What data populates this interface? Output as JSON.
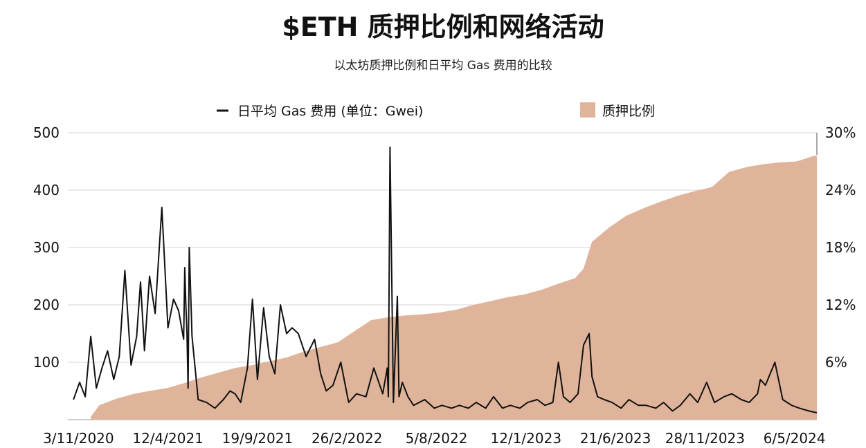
{
  "chart_data": {
    "type": "line+area",
    "title": "$ETH 质押比例和网络活动",
    "subtitle": "以太坊质押比例和日平均 Gas 费用的比较",
    "legend": {
      "placement": "top",
      "gas_label": "日平均 Gas 费用 (单位：Gwei)",
      "staking_label": "质押比例"
    },
    "colors": {
      "gas_line": "#111111",
      "staking_area": "#dfb49a",
      "grid": "#d6d6d6"
    },
    "grid": true,
    "x_tick_labels": [
      "3/11/2020",
      "12/4/2021",
      "19/9/2021",
      "26/2/2022",
      "5/8/2022",
      "12/1/2023",
      "21/6/2023",
      "28/11/2023",
      "6/5/2024"
    ],
    "x_tick_dates": [
      "2020-11-03",
      "2021-04-12",
      "2021-09-19",
      "2022-02-26",
      "2022-08-05",
      "2023-01-12",
      "2023-06-21",
      "2023-11-28",
      "2024-05-06"
    ],
    "x_range": [
      "2020-10-15",
      "2024-06-15"
    ],
    "y_left": {
      "label": "",
      "ylim": [
        0,
        500
      ],
      "tick_values": [
        100,
        200,
        300,
        400,
        500
      ],
      "tick_labels": [
        "100",
        "200",
        "300",
        "400",
        "500"
      ]
    },
    "y_right": {
      "label": "",
      "ylim": [
        0,
        30
      ],
      "tick_values": [
        6,
        12,
        18,
        24,
        30
      ],
      "tick_labels": [
        "6%",
        "12%",
        "18%",
        "24%",
        "30%"
      ]
    },
    "series": [
      {
        "name": "质押比例",
        "type": "area",
        "axis": "right",
        "unit": "%",
        "x": [
          "2020-11-25",
          "2020-12-10",
          "2021-01-10",
          "2021-02-10",
          "2021-03-10",
          "2021-04-10",
          "2021-05-10",
          "2021-06-10",
          "2021-07-10",
          "2021-08-10",
          "2021-09-10",
          "2021-10-10",
          "2021-11-10",
          "2021-12-10",
          "2022-01-10",
          "2022-02-10",
          "2022-03-10",
          "2022-04-10",
          "2022-05-10",
          "2022-06-10",
          "2022-07-10",
          "2022-08-10",
          "2022-09-10",
          "2022-10-10",
          "2022-11-10",
          "2022-12-10",
          "2023-01-10",
          "2023-02-10",
          "2023-03-10",
          "2023-04-10",
          "2023-04-25",
          "2023-05-10",
          "2023-06-10",
          "2023-07-10",
          "2023-08-10",
          "2023-09-10",
          "2023-10-10",
          "2023-11-10",
          "2023-12-10",
          "2024-01-10",
          "2024-02-10",
          "2024-03-10",
          "2024-04-10",
          "2024-05-10",
          "2024-06-10"
        ],
        "values": [
          0.3,
          1.5,
          2.2,
          2.7,
          3.0,
          3.3,
          3.8,
          4.4,
          4.9,
          5.4,
          5.7,
          6.1,
          6.5,
          7.1,
          7.6,
          8.1,
          9.2,
          10.4,
          10.7,
          10.9,
          11.0,
          11.2,
          11.5,
          12.0,
          12.4,
          12.8,
          13.1,
          13.6,
          14.2,
          14.8,
          15.8,
          18.6,
          20.1,
          21.3,
          22.1,
          22.8,
          23.4,
          23.9,
          24.3,
          25.9,
          26.4,
          26.7,
          26.9,
          27.0,
          27.6
        ]
      },
      {
        "name": "日平均 Gas 费用 (单位：Gwei)",
        "type": "line",
        "axis": "left",
        "unit": "Gwei",
        "x": [
          "2020-10-25",
          "2020-11-05",
          "2020-11-15",
          "2020-11-25",
          "2020-12-05",
          "2020-12-15",
          "2020-12-25",
          "2021-01-05",
          "2021-01-15",
          "2021-01-25",
          "2021-02-05",
          "2021-02-15",
          "2021-02-22",
          "2021-03-01",
          "2021-03-10",
          "2021-03-20",
          "2021-04-01",
          "2021-04-12",
          "2021-04-22",
          "2021-05-01",
          "2021-05-10",
          "2021-05-12",
          "2021-05-14",
          "2021-05-16",
          "2021-05-18",
          "2021-05-20",
          "2021-05-25",
          "2021-06-05",
          "2021-06-20",
          "2021-07-05",
          "2021-07-20",
          "2021-08-01",
          "2021-08-10",
          "2021-08-20",
          "2021-09-01",
          "2021-09-10",
          "2021-09-19",
          "2021-09-30",
          "2021-10-10",
          "2021-10-20",
          "2021-10-30",
          "2021-11-10",
          "2021-11-20",
          "2021-12-01",
          "2021-12-15",
          "2021-12-30",
          "2022-01-10",
          "2022-01-20",
          "2022-02-01",
          "2022-02-15",
          "2022-03-01",
          "2022-03-15",
          "2022-04-01",
          "2022-04-15",
          "2022-05-01",
          "2022-05-09",
          "2022-05-11",
          "2022-05-14",
          "2022-05-20",
          "2022-05-27",
          "2022-05-30",
          "2022-06-05",
          "2022-06-15",
          "2022-06-25",
          "2022-07-05",
          "2022-07-15",
          "2022-08-01",
          "2022-08-15",
          "2022-09-01",
          "2022-09-15",
          "2022-10-01",
          "2022-10-15",
          "2022-11-01",
          "2022-11-15",
          "2022-12-01",
          "2022-12-15",
          "2023-01-01",
          "2023-01-15",
          "2023-02-01",
          "2023-02-15",
          "2023-03-01",
          "2023-03-11",
          "2023-03-20",
          "2023-04-01",
          "2023-04-15",
          "2023-04-25",
          "2023-05-05",
          "2023-05-10",
          "2023-05-20",
          "2023-06-01",
          "2023-06-15",
          "2023-07-01",
          "2023-07-15",
          "2023-08-01",
          "2023-08-15",
          "2023-09-01",
          "2023-09-15",
          "2023-10-01",
          "2023-10-15",
          "2023-11-01",
          "2023-11-15",
          "2023-12-01",
          "2023-12-15",
          "2024-01-01",
          "2024-01-15",
          "2024-02-01",
          "2024-02-15",
          "2024-03-01",
          "2024-03-06",
          "2024-03-15",
          "2024-04-01",
          "2024-04-15",
          "2024-05-01",
          "2024-05-15",
          "2024-06-01",
          "2024-06-15"
        ],
        "values": [
          35,
          65,
          40,
          145,
          55,
          90,
          120,
          70,
          110,
          260,
          95,
          145,
          240,
          120,
          250,
          185,
          370,
          160,
          210,
          190,
          140,
          265,
          200,
          150,
          55,
          300,
          145,
          35,
          30,
          20,
          35,
          50,
          45,
          30,
          90,
          210,
          70,
          195,
          110,
          80,
          200,
          150,
          160,
          150,
          110,
          140,
          80,
          50,
          60,
          100,
          30,
          45,
          40,
          90,
          45,
          90,
          40,
          475,
          30,
          215,
          40,
          65,
          40,
          25,
          30,
          35,
          20,
          25,
          20,
          25,
          20,
          30,
          20,
          40,
          20,
          25,
          20,
          30,
          35,
          25,
          30,
          100,
          40,
          30,
          45,
          130,
          150,
          75,
          40,
          35,
          30,
          20,
          35,
          25,
          25,
          20,
          30,
          15,
          25,
          45,
          30,
          65,
          30,
          40,
          45,
          35,
          30,
          45,
          70,
          60,
          100,
          35,
          25,
          20,
          15,
          12
        ]
      }
    ]
  }
}
